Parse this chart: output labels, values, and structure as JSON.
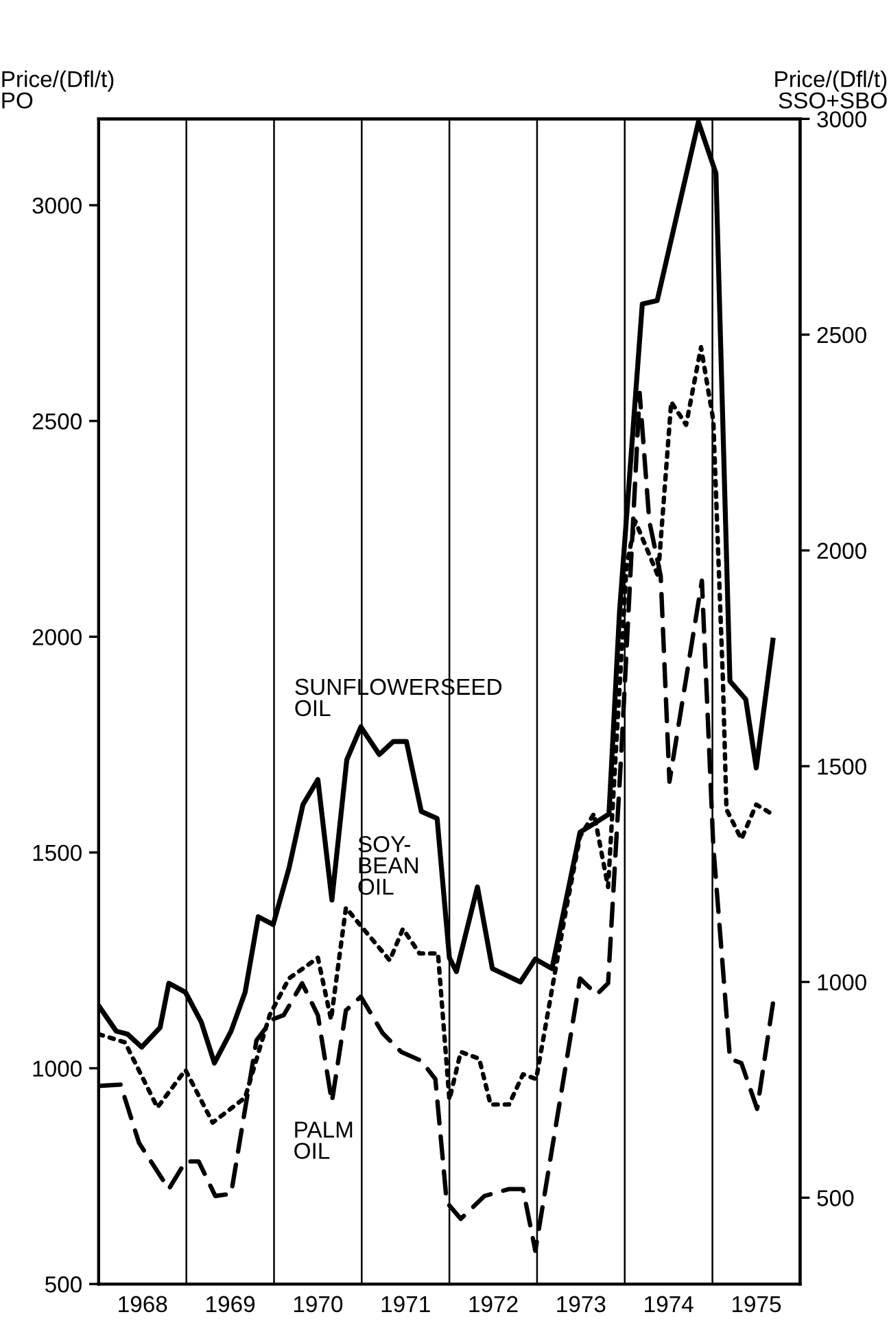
{
  "chart_data": {
    "type": "line",
    "ylabel": "Price/(Dfl/t)\nPO",
    "y2label": "Price/(Dfl/t)\nSSO+SBO",
    "xlim": [
      1968,
      1976
    ],
    "xticks": [
      {
        "value": 1968.5,
        "label": "1968"
      },
      {
        "value": 1969.5,
        "label": "1969"
      },
      {
        "value": 1970.5,
        "label": "1970"
      },
      {
        "value": 1971.5,
        "label": "1971"
      },
      {
        "value": 1972.5,
        "label": "1972"
      },
      {
        "value": 1973.5,
        "label": "1973"
      },
      {
        "value": 1974.5,
        "label": "1974"
      },
      {
        "value": 1975.5,
        "label": "1975"
      }
    ],
    "ylim": [
      500,
      3200
    ],
    "yticks": [
      500,
      1000,
      1500,
      2000,
      2500,
      3000
    ],
    "y2lim": [
      300,
      3000
    ],
    "y2ticks": [
      500,
      1000,
      1500,
      2000,
      2500,
      3000
    ],
    "ref_lines": [
      {
        "axis": "x",
        "value": 1969
      },
      {
        "axis": "x",
        "value": 1970
      },
      {
        "axis": "x",
        "value": 1971
      },
      {
        "axis": "x",
        "value": 1972
      },
      {
        "axis": "x",
        "value": 1973
      },
      {
        "axis": "x",
        "value": 1974
      },
      {
        "axis": "x",
        "value": 1975
      }
    ],
    "grid": false,
    "legend": false,
    "marker": "none",
    "series": [
      {
        "name": "SUNFLOWERSEED\nOIL",
        "color": "#000000",
        "axis": "y2",
        "line_style": "solid",
        "x": [
          1968.0,
          1968.2,
          1968.33,
          1968.49,
          1968.7,
          1968.8,
          1968.99,
          1969.17,
          1969.32,
          1969.51,
          1969.67,
          1969.82,
          1969.99,
          1970.17,
          1970.33,
          1970.5,
          1970.66,
          1970.83,
          1970.99,
          1971.2,
          1971.36,
          1971.51,
          1971.68,
          1971.86,
          1972.0,
          1972.08,
          1972.32,
          1972.49,
          1972.81,
          1972.98,
          1973.17,
          1973.49,
          1973.65,
          1973.82,
          1973.94,
          1974.2,
          1974.37,
          1974.84,
          1975.04,
          1975.2,
          1975.38,
          1975.5,
          1975.69
        ],
        "values": [
          945,
          886,
          879,
          849,
          894,
          997,
          976,
          907,
          812,
          886,
          976,
          1151,
          1133,
          1263,
          1411,
          1469,
          1190,
          1515,
          1591,
          1527,
          1557,
          1557,
          1395,
          1379,
          1056,
          1024,
          1220,
          1031,
          1000,
          1053,
          1031,
          1347,
          1367,
          1389,
          1856,
          2571,
          2579,
          2993,
          2874,
          1697,
          1655,
          1496,
          1792
        ]
      },
      {
        "name": "SOY-\nBEAN\nOIL",
        "color": "#000000",
        "axis": "y2",
        "line_style": "dotted",
        "x": [
          1968.0,
          1968.3,
          1968.67,
          1968.99,
          1969.3,
          1969.67,
          1969.95,
          1970.17,
          1970.5,
          1970.65,
          1970.82,
          1970.99,
          1971.32,
          1971.47,
          1971.66,
          1971.87,
          1972.0,
          1972.13,
          1972.34,
          1972.47,
          1972.68,
          1972.84,
          1972.99,
          1973.33,
          1973.49,
          1973.65,
          1973.81,
          1974.02,
          1974.12,
          1974.38,
          1974.53,
          1974.7,
          1974.87,
          1975.01,
          1975.12,
          1975.16,
          1975.33,
          1975.5,
          1975.69
        ],
        "values": [
          879,
          860,
          709,
          796,
          674,
          732,
          923,
          1008,
          1056,
          913,
          1172,
          1130,
          1050,
          1123,
          1066,
          1066,
          727,
          838,
          822,
          716,
          716,
          786,
          775,
          1167,
          1337,
          1390,
          1220,
          1962,
          2068,
          1941,
          2344,
          2291,
          2471,
          2301,
          1697,
          1400,
          1331,
          1411,
          1388
        ]
      },
      {
        "name": "PALM\nOIL",
        "color": "#000000",
        "line_style": "dashed",
        "x": [
          1968.0,
          1968.25,
          1968.46,
          1968.8,
          1968.99,
          1969.14,
          1969.33,
          1969.51,
          1969.8,
          1969.98,
          1970.11,
          1970.32,
          1970.5,
          1970.66,
          1970.82,
          1970.99,
          1971.24,
          1971.45,
          1971.68,
          1971.84,
          1971.97,
          1972.13,
          1972.4,
          1972.68,
          1972.84,
          1972.98,
          1973.49,
          1973.68,
          1973.81,
          1973.96,
          1974.17,
          1974.28,
          1974.41,
          1974.51,
          1974.88,
          1975.01,
          1975.2,
          1975.33,
          1975.51,
          1975.69
        ],
        "values": [
          959,
          962,
          827,
          720,
          784,
          784,
          704,
          709,
          1065,
          1113,
          1123,
          1197,
          1123,
          922,
          1134,
          1166,
          1081,
          1038,
          1017,
          975,
          689,
          651,
          704,
          720,
          720,
          577,
          1208,
          1171,
          1197,
          1727,
          2565,
          2268,
          2141,
          1664,
          2130,
          1515,
          1022,
          1012,
          906,
          1150
        ]
      }
    ]
  }
}
